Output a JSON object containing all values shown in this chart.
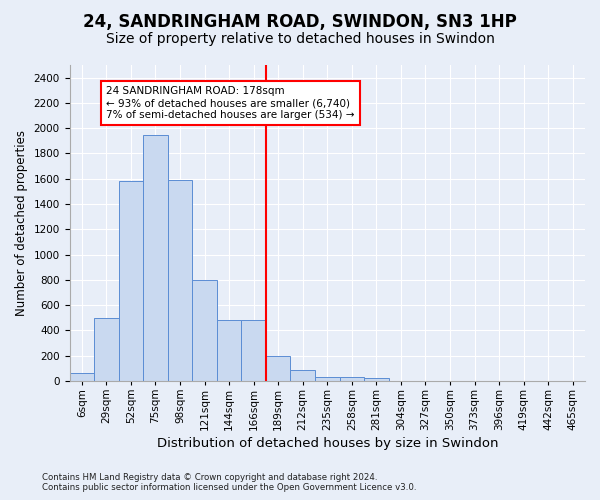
{
  "title": "24, SANDRINGHAM ROAD, SWINDON, SN3 1HP",
  "subtitle": "Size of property relative to detached houses in Swindon",
  "xlabel": "Distribution of detached houses by size in Swindon",
  "ylabel": "Number of detached properties",
  "footer_line1": "Contains HM Land Registry data © Crown copyright and database right 2024.",
  "footer_line2": "Contains public sector information licensed under the Open Government Licence v3.0.",
  "categories": [
    "6sqm",
    "29sqm",
    "52sqm",
    "75sqm",
    "98sqm",
    "121sqm",
    "144sqm",
    "166sqm",
    "189sqm",
    "212sqm",
    "235sqm",
    "258sqm",
    "281sqm",
    "304sqm",
    "327sqm",
    "350sqm",
    "373sqm",
    "396sqm",
    "419sqm",
    "442sqm",
    "465sqm"
  ],
  "bar_values": [
    60,
    500,
    1580,
    1950,
    1590,
    800,
    480,
    480,
    195,
    90,
    35,
    28,
    20,
    0,
    0,
    0,
    0,
    0,
    0,
    0,
    0
  ],
  "bar_color": "#c9d9f0",
  "bar_edge_color": "#5b8dd4",
  "vline_position": 7.5,
  "vline_color": "red",
  "annotation_text": "24 SANDRINGHAM ROAD: 178sqm\n← 93% of detached houses are smaller (6,740)\n7% of semi-detached houses are larger (534) →",
  "annotation_box_color": "white",
  "annotation_box_edge_color": "red",
  "ylim": [
    0,
    2500
  ],
  "yticks": [
    0,
    200,
    400,
    600,
    800,
    1000,
    1200,
    1400,
    1600,
    1800,
    2000,
    2200,
    2400
  ],
  "background_color": "#e8eef8",
  "grid_color": "white",
  "title_fontsize": 12,
  "subtitle_fontsize": 10,
  "xlabel_fontsize": 9.5,
  "ylabel_fontsize": 8.5,
  "tick_fontsize": 7.5,
  "annotation_fontsize": 7.5
}
